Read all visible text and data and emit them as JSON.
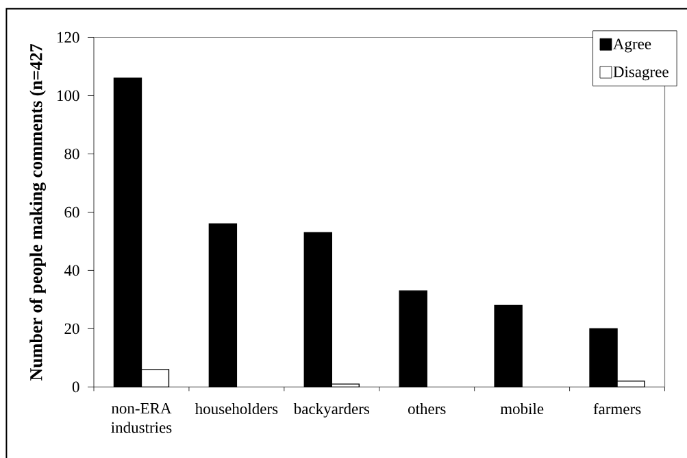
{
  "chart_data": {
    "type": "bar",
    "ylabel": "Number of people making comments (n=427",
    "categories": [
      "non-ERA industries",
      "householders",
      "backyarders",
      "others",
      "mobile",
      "farmers"
    ],
    "series": [
      {
        "name": "Agree",
        "color": "#000000",
        "values": [
          106,
          56,
          53,
          33,
          28,
          20
        ]
      },
      {
        "name": "Disagree",
        "color": "#ffffff",
        "values": [
          6,
          null,
          1,
          null,
          null,
          2
        ]
      }
    ],
    "ylim": [
      0,
      120
    ],
    "yticks": [
      0,
      20,
      40,
      60,
      80,
      100,
      120
    ],
    "legend": "top right"
  }
}
